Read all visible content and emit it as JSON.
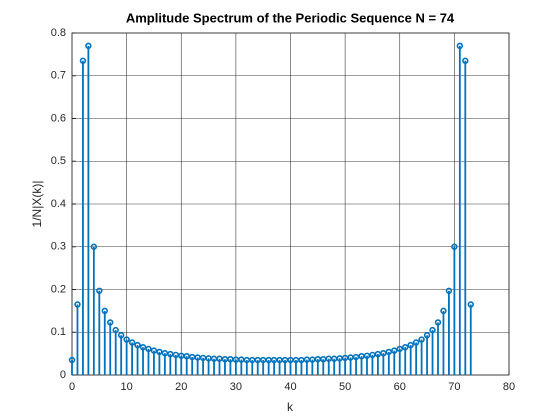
{
  "chart_data": {
    "type": "stem",
    "title": "Amplitude Spectrum of the Periodic Sequence N = 74",
    "x_label": "k",
    "y_label": "1/N|X(k)|",
    "x": [
      0,
      1,
      2,
      3,
      4,
      5,
      6,
      7,
      8,
      9,
      10,
      11,
      12,
      13,
      14,
      15,
      16,
      17,
      18,
      19,
      20,
      21,
      22,
      23,
      24,
      25,
      26,
      27,
      28,
      29,
      30,
      31,
      32,
      33,
      34,
      35,
      36,
      37,
      38,
      39,
      40,
      41,
      42,
      43,
      44,
      45,
      46,
      47,
      48,
      49,
      50,
      51,
      52,
      53,
      54,
      55,
      56,
      57,
      58,
      59,
      60,
      61,
      62,
      63,
      64,
      65,
      66,
      67,
      68,
      69,
      70,
      71,
      72,
      73
    ],
    "values": [
      0.035,
      0.165,
      0.735,
      0.77,
      0.3,
      0.197,
      0.15,
      0.123,
      0.105,
      0.093,
      0.083,
      0.076,
      0.07,
      0.065,
      0.061,
      0.057,
      0.054,
      0.051,
      0.049,
      0.047,
      0.045,
      0.044,
      0.042,
      0.041,
      0.04,
      0.039,
      0.038,
      0.038,
      0.037,
      0.037,
      0.036,
      0.036,
      0.035,
      0.035,
      0.035,
      0.035,
      0.035,
      0.035,
      0.035,
      0.035,
      0.035,
      0.035,
      0.035,
      0.036,
      0.036,
      0.037,
      0.037,
      0.038,
      0.038,
      0.039,
      0.04,
      0.041,
      0.042,
      0.044,
      0.045,
      0.047,
      0.049,
      0.051,
      0.054,
      0.057,
      0.061,
      0.065,
      0.07,
      0.076,
      0.083,
      0.093,
      0.105,
      0.123,
      0.15,
      0.197,
      0.3,
      0.77,
      0.735,
      0.165
    ],
    "color": "#0072bd",
    "xlim": [
      0,
      80
    ],
    "xticks": [
      0,
      10,
      20,
      30,
      40,
      50,
      60,
      70,
      80
    ],
    "ylim": [
      0,
      0.8
    ],
    "yticks": [
      0,
      0.1,
      0.2,
      0.3,
      0.4,
      0.5,
      0.6,
      0.7,
      0.8
    ],
    "grid": true
  }
}
